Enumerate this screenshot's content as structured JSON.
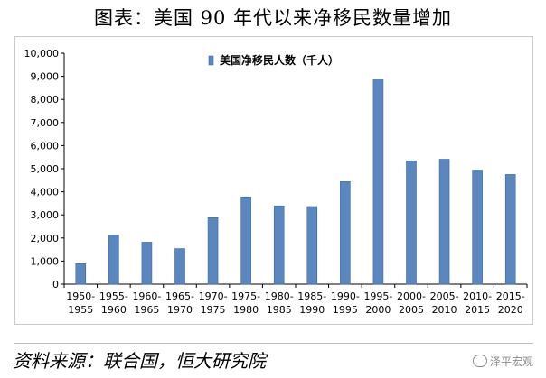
{
  "title": "图表：美国 90 年代以来净移民数量增加",
  "source": "资料来源：联合国，恒大研究院",
  "watermark": "泽平宏观",
  "colors": {
    "bar": "#5b86be",
    "bar_edge": "#3d6aa3",
    "axis": "#000000"
  },
  "chart_data": {
    "type": "bar",
    "categories": [
      "1950-1955",
      "1955-1960",
      "1960-1965",
      "1965-1970",
      "1970-1975",
      "1975-1980",
      "1980-1985",
      "1985-1990",
      "1990-1995",
      "1995-2000",
      "2000-2005",
      "2005-2010",
      "2010-2015",
      "2015-2020"
    ],
    "category_lines": [
      [
        "1950-",
        "1955"
      ],
      [
        "1955-",
        "1960"
      ],
      [
        "1960-",
        "1965"
      ],
      [
        "1965-",
        "1970"
      ],
      [
        "1970-",
        "1975"
      ],
      [
        "1975-",
        "1980"
      ],
      [
        "1980-",
        "1985"
      ],
      [
        "1985-",
        "1990"
      ],
      [
        "1990-",
        "1995"
      ],
      [
        "1995-",
        "2000"
      ],
      [
        "2000-",
        "2005"
      ],
      [
        "2005-",
        "2010"
      ],
      [
        "2010-",
        "2015"
      ],
      [
        "2015-",
        "2020"
      ]
    ],
    "series": [
      {
        "name": "美国净移民人数（千人）",
        "values": [
          890,
          2130,
          1820,
          1540,
          2880,
          3780,
          3390,
          3360,
          4440,
          8850,
          5340,
          5410,
          4940,
          4750
        ]
      }
    ],
    "ylim": [
      0,
      10000
    ],
    "yticks": [
      0,
      1000,
      2000,
      3000,
      4000,
      5000,
      6000,
      7000,
      8000,
      9000,
      10000
    ],
    "ytick_labels": [
      "0",
      "1,000",
      "2,000",
      "3,000",
      "4,000",
      "5,000",
      "6,000",
      "7,000",
      "8,000",
      "9,000",
      "10,000"
    ],
    "grid": false,
    "legend_position": "top-center"
  }
}
